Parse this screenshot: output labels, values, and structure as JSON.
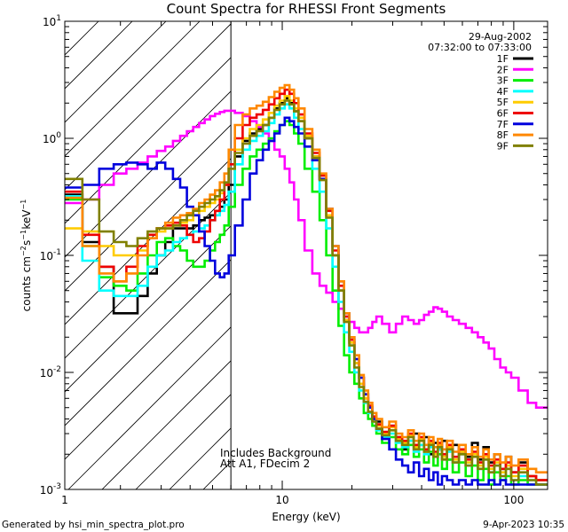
{
  "chart_data": {
    "type": "line",
    "title": "Count Spectra for RHESSI Front Segments",
    "xlabel": "Energy (keV)",
    "ylabel": "counts cm⁻² s⁻¹ keV⁻¹",
    "xscale": "log",
    "yscale": "log",
    "xlim": [
      1.15,
      140
    ],
    "ylim": [
      0.001,
      10
    ],
    "x_ticks": [
      {
        "value": 1,
        "label": "1"
      },
      {
        "value": 10,
        "label": "10"
      },
      {
        "value": 100,
        "label": "100"
      }
    ],
    "y_ticks": [
      {
        "value": 0.001,
        "base": "10",
        "exp": "-3"
      },
      {
        "value": 0.01,
        "base": "10",
        "exp": "-2"
      },
      {
        "value": 0.1,
        "base": "10",
        "exp": "-1"
      },
      {
        "value": 1,
        "base": "10",
        "exp": "0"
      },
      {
        "value": 10,
        "base": "10",
        "exp": "1"
      }
    ],
    "date": "29-Aug-2002",
    "time_range": "07:32:00 to 07:33:00",
    "annotations": [
      "Includes Background",
      "Att A1, FDecim 2"
    ],
    "attenuator_cutoff_kev": 6,
    "x": [
      1.25,
      1.5,
      1.75,
      2.0,
      2.25,
      2.5,
      2.75,
      3.0,
      3.25,
      3.5,
      3.75,
      4.0,
      4.25,
      4.5,
      4.75,
      5.0,
      5.25,
      5.5,
      5.75,
      6.0,
      6.5,
      7.0,
      7.5,
      8.0,
      8.5,
      9.0,
      9.5,
      10.0,
      10.5,
      11.0,
      11.5,
      12.0,
      13.0,
      14.0,
      15.0,
      16.0,
      17.0,
      18.0,
      19.0,
      20.0,
      21.0,
      22.0,
      23.0,
      24.0,
      25.0,
      26.0,
      28.0,
      30.0,
      32.0,
      34.0,
      36.0,
      38.0,
      40.0,
      42.0,
      44.0,
      46.0,
      48.0,
      50.0,
      53.0,
      56.0,
      60.0,
      64.0,
      68.0,
      72.0,
      76.0,
      80.0,
      85.0,
      90.0,
      95.0,
      100.0,
      110.0,
      120.0,
      130.0
    ],
    "series": [
      {
        "name": "1F",
        "color": "#000000",
        "values": [
          0.33,
          0.13,
          0.08,
          0.032,
          0.032,
          0.045,
          0.07,
          0.1,
          0.13,
          0.17,
          0.17,
          0.17,
          0.18,
          0.2,
          0.21,
          0.22,
          0.24,
          0.26,
          0.3,
          0.4,
          0.7,
          0.95,
          1.1,
          1.2,
          1.3,
          1.5,
          1.8,
          2.0,
          2.2,
          2.0,
          1.7,
          1.4,
          1.0,
          0.7,
          0.45,
          0.22,
          0.1,
          0.05,
          0.028,
          0.018,
          0.012,
          0.008,
          0.006,
          0.005,
          0.004,
          0.0038,
          0.003,
          0.0035,
          0.0028,
          0.0022,
          0.0026,
          0.003,
          0.0024,
          0.0028,
          0.002,
          0.0025,
          0.0022,
          0.0026,
          0.0018,
          0.0024,
          0.0021,
          0.0019,
          0.0025,
          0.0018,
          0.0023,
          0.0017,
          0.002,
          0.0015,
          0.0019,
          0.0014,
          0.0017,
          0.0013,
          0.0012
        ]
      },
      {
        "name": "2F",
        "color": "#ff00ff",
        "values": [
          0.28,
          0.3,
          0.4,
          0.5,
          0.55,
          0.62,
          0.7,
          0.78,
          0.85,
          0.95,
          1.05,
          1.15,
          1.25,
          1.35,
          1.45,
          1.55,
          1.62,
          1.68,
          1.72,
          1.72,
          1.65,
          1.55,
          1.4,
          1.25,
          1.1,
          0.95,
          0.8,
          0.7,
          0.55,
          0.42,
          0.3,
          0.2,
          0.11,
          0.07,
          0.055,
          0.048,
          0.04,
          0.035,
          0.03,
          0.027,
          0.024,
          0.022,
          0.022,
          0.024,
          0.027,
          0.03,
          0.026,
          0.022,
          0.026,
          0.03,
          0.028,
          0.026,
          0.028,
          0.031,
          0.033,
          0.036,
          0.035,
          0.033,
          0.03,
          0.028,
          0.026,
          0.024,
          0.022,
          0.02,
          0.018,
          0.016,
          0.013,
          0.011,
          0.01,
          0.009,
          0.007,
          0.0055,
          0.005
        ]
      },
      {
        "name": "3F",
        "color": "#00ee00",
        "values": [
          0.3,
          0.12,
          0.065,
          0.055,
          0.05,
          0.07,
          0.1,
          0.13,
          0.14,
          0.12,
          0.11,
          0.09,
          0.08,
          0.08,
          0.09,
          0.11,
          0.13,
          0.15,
          0.18,
          0.26,
          0.4,
          0.55,
          0.7,
          0.8,
          0.9,
          1.0,
          1.15,
          1.3,
          1.4,
          1.3,
          1.1,
          0.9,
          0.55,
          0.35,
          0.2,
          0.1,
          0.05,
          0.025,
          0.014,
          0.01,
          0.008,
          0.006,
          0.0045,
          0.004,
          0.0035,
          0.003,
          0.0025,
          0.0028,
          0.0022,
          0.002,
          0.0024,
          0.0019,
          0.0022,
          0.0017,
          0.0021,
          0.0016,
          0.002,
          0.0015,
          0.0018,
          0.0014,
          0.0017,
          0.0013,
          0.0016,
          0.0012,
          0.0015,
          0.0011,
          0.0014,
          0.0012,
          0.0013,
          0.0011,
          0.0012,
          0.0011,
          0.0011
        ]
      },
      {
        "name": "4F",
        "color": "#00ffff",
        "values": [
          0.32,
          0.09,
          0.05,
          0.045,
          0.045,
          0.055,
          0.08,
          0.1,
          0.11,
          0.13,
          0.14,
          0.15,
          0.16,
          0.17,
          0.18,
          0.2,
          0.22,
          0.24,
          0.27,
          0.35,
          0.6,
          0.8,
          0.95,
          1.05,
          1.15,
          1.35,
          1.6,
          1.8,
          1.95,
          1.8,
          1.5,
          1.2,
          0.85,
          0.55,
          0.35,
          0.17,
          0.08,
          0.04,
          0.022,
          0.015,
          0.01,
          0.007,
          0.0055,
          0.0045,
          0.0038,
          0.0032,
          0.0028,
          0.003,
          0.0025,
          0.0023,
          0.0026,
          0.0021,
          0.0024,
          0.002,
          0.0023,
          0.0019,
          0.0022,
          0.0018,
          0.0021,
          0.0017,
          0.002,
          0.0016,
          0.0019,
          0.0015,
          0.0018,
          0.0014,
          0.0016,
          0.0013,
          0.0015,
          0.0012,
          0.0013,
          0.0012,
          0.0011
        ]
      },
      {
        "name": "5F",
        "color": "#ffcc00",
        "values": [
          0.17,
          0.16,
          0.12,
          0.1,
          0.1,
          0.11,
          0.14,
          0.16,
          0.17,
          0.18,
          0.19,
          0.2,
          0.22,
          0.24,
          0.26,
          0.28,
          0.3,
          0.34,
          0.4,
          0.55,
          0.8,
          1.0,
          1.2,
          1.3,
          1.45,
          1.65,
          1.9,
          2.1,
          2.3,
          2.1,
          1.8,
          1.5,
          1.05,
          0.7,
          0.45,
          0.22,
          0.1,
          0.05,
          0.028,
          0.018,
          0.012,
          0.008,
          0.006,
          0.005,
          0.004,
          0.0035,
          0.003,
          0.0034,
          0.0027,
          0.0025,
          0.0029,
          0.0023,
          0.0027,
          0.0021,
          0.0025,
          0.002,
          0.0024,
          0.0019,
          0.0023,
          0.0018,
          0.0021,
          0.0017,
          0.002,
          0.0016,
          0.0019,
          0.0015,
          0.0017,
          0.0014,
          0.0016,
          0.0013,
          0.0015,
          0.0013,
          0.0012
        ]
      },
      {
        "name": "6F",
        "color": "#ee0000",
        "values": [
          0.35,
          0.15,
          0.08,
          0.06,
          0.08,
          0.12,
          0.15,
          0.17,
          0.18,
          0.19,
          0.18,
          0.15,
          0.13,
          0.14,
          0.16,
          0.2,
          0.24,
          0.3,
          0.4,
          0.6,
          1.0,
          1.3,
          1.5,
          1.6,
          1.75,
          1.95,
          2.2,
          2.4,
          2.6,
          2.4,
          2.0,
          1.6,
          1.1,
          0.75,
          0.48,
          0.24,
          0.11,
          0.055,
          0.03,
          0.019,
          0.013,
          0.009,
          0.0065,
          0.0052,
          0.0042,
          0.0036,
          0.0031,
          0.0035,
          0.0028,
          0.0026,
          0.003,
          0.0024,
          0.0028,
          0.0022,
          0.0026,
          0.0021,
          0.0025,
          0.002,
          0.0024,
          0.0019,
          0.0022,
          0.0018,
          0.0021,
          0.0017,
          0.002,
          0.0016,
          0.0018,
          0.0015,
          0.0017,
          0.0014,
          0.0016,
          0.0013,
          0.0012
        ]
      },
      {
        "name": "7F",
        "color": "#0000dd",
        "values": [
          0.38,
          0.4,
          0.55,
          0.6,
          0.62,
          0.6,
          0.55,
          0.62,
          0.55,
          0.45,
          0.38,
          0.26,
          0.22,
          0.16,
          0.12,
          0.09,
          0.07,
          0.065,
          0.07,
          0.1,
          0.18,
          0.3,
          0.5,
          0.65,
          0.8,
          0.95,
          1.1,
          1.3,
          1.5,
          1.4,
          1.25,
          1.1,
          0.85,
          0.65,
          0.45,
          0.25,
          0.12,
          0.06,
          0.032,
          0.02,
          0.013,
          0.009,
          0.0065,
          0.005,
          0.004,
          0.0033,
          0.0027,
          0.0022,
          0.0018,
          0.0016,
          0.0014,
          0.0017,
          0.0013,
          0.0015,
          0.0012,
          0.0014,
          0.0011,
          0.0013,
          0.0012,
          0.0011,
          0.0012,
          0.0011,
          0.0012,
          0.0011,
          0.0011,
          0.0012,
          0.0011,
          0.0012,
          0.0011,
          0.0011,
          0.0011,
          0.0011,
          0.0011
        ]
      },
      {
        "name": "8F",
        "color": "#ff8800",
        "values": [
          0.31,
          0.12,
          0.07,
          0.06,
          0.07,
          0.1,
          0.14,
          0.17,
          0.19,
          0.21,
          0.22,
          0.23,
          0.25,
          0.28,
          0.3,
          0.33,
          0.36,
          0.42,
          0.5,
          0.8,
          1.3,
          1.6,
          1.8,
          1.9,
          2.05,
          2.25,
          2.5,
          2.7,
          2.85,
          2.6,
          2.2,
          1.8,
          1.2,
          0.8,
          0.5,
          0.25,
          0.12,
          0.06,
          0.032,
          0.02,
          0.014,
          0.0095,
          0.007,
          0.0055,
          0.0045,
          0.004,
          0.0034,
          0.0038,
          0.003,
          0.0028,
          0.0032,
          0.0026,
          0.003,
          0.0024,
          0.0028,
          0.0023,
          0.0027,
          0.0022,
          0.0026,
          0.0021,
          0.0024,
          0.002,
          0.0023,
          0.0019,
          0.0022,
          0.0018,
          0.002,
          0.0017,
          0.0019,
          0.0016,
          0.0018,
          0.0015,
          0.0014
        ]
      },
      {
        "name": "9F",
        "color": "#808000",
        "values": [
          0.45,
          0.3,
          0.16,
          0.13,
          0.12,
          0.14,
          0.16,
          0.17,
          0.17,
          0.18,
          0.2,
          0.22,
          0.24,
          0.26,
          0.28,
          0.3,
          0.32,
          0.36,
          0.42,
          0.55,
          0.75,
          0.9,
          1.05,
          1.15,
          1.3,
          1.5,
          1.75,
          1.95,
          2.1,
          1.95,
          1.7,
          1.4,
          1.0,
          0.68,
          0.44,
          0.21,
          0.1,
          0.05,
          0.027,
          0.017,
          0.011,
          0.0075,
          0.0056,
          0.0046,
          0.0038,
          0.0033,
          0.0029,
          0.0032,
          0.0026,
          0.0024,
          0.0028,
          0.0022,
          0.0026,
          0.0021,
          0.0024,
          0.0019,
          0.0023,
          0.0018,
          0.0022,
          0.0017,
          0.002,
          0.0016,
          0.0019,
          0.0015,
          0.0018,
          0.0014,
          0.0016,
          0.0013,
          0.0015,
          0.0012,
          0.0014,
          0.0012,
          0.0011
        ]
      }
    ]
  },
  "footer": {
    "generated_by": "Generated by hsi_min_spectra_plot.pro",
    "timestamp": "9-Apr-2023 10:35"
  }
}
